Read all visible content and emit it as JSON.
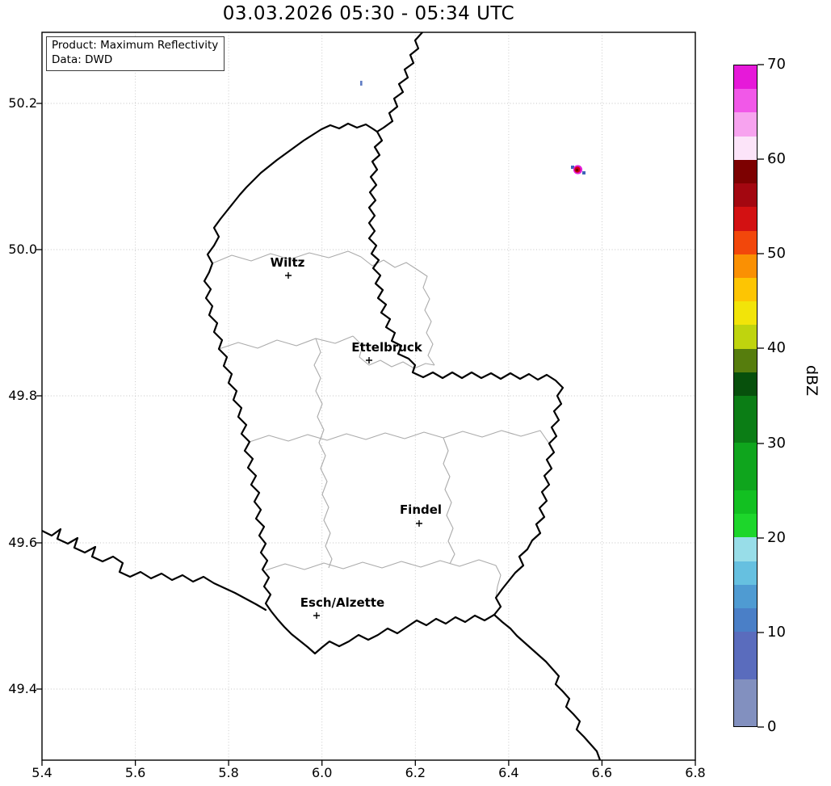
{
  "title": "03.03.2026 05:30 - 05:34 UTC",
  "info_box": {
    "product": "Product: Maximum Reflectivity",
    "data_source": "Data: DWD"
  },
  "axes": {
    "x_ticks": [
      "5.4",
      "5.6",
      "5.8",
      "6.0",
      "6.2",
      "6.4",
      "6.6",
      "6.8"
    ],
    "y_ticks": [
      "50.2",
      "50.0",
      "49.8",
      "49.6",
      "49.4"
    ]
  },
  "cities": [
    {
      "name": "Wiltz",
      "lon": 5.93,
      "lat": 49.97
    },
    {
      "name": "Ettelbruck",
      "lon": 6.1,
      "lat": 49.85
    },
    {
      "name": "Findel",
      "lon": 6.21,
      "lat": 49.63
    },
    {
      "name": "Esch/Alzette",
      "lon": 5.99,
      "lat": 49.5
    }
  ],
  "colorbar": {
    "label": "dBZ",
    "tick_labels": [
      "70",
      "60",
      "50",
      "40",
      "30",
      "20",
      "10",
      "0"
    ],
    "bands": [
      {
        "min": 67.5,
        "max": 70,
        "color": "#e619d9"
      },
      {
        "min": 65,
        "max": 67.5,
        "color": "#f158e8"
      },
      {
        "min": 62.5,
        "max": 65,
        "color": "#f7a3ef"
      },
      {
        "min": 60,
        "max": 62.5,
        "color": "#fce4f9"
      },
      {
        "min": 57.5,
        "max": 60,
        "color": "#7d0101"
      },
      {
        "min": 55,
        "max": 57.5,
        "color": "#a30710"
      },
      {
        "min": 52.5,
        "max": 55,
        "color": "#d31112"
      },
      {
        "min": 50,
        "max": 52.5,
        "color": "#f2470b"
      },
      {
        "min": 47.5,
        "max": 50,
        "color": "#fa9003"
      },
      {
        "min": 45,
        "max": 47.5,
        "color": "#fdc503"
      },
      {
        "min": 42.5,
        "max": 45,
        "color": "#f2e409"
      },
      {
        "min": 40,
        "max": 42.5,
        "color": "#bfd40e"
      },
      {
        "min": 37.5,
        "max": 40,
        "color": "#567d0d"
      },
      {
        "min": 35,
        "max": 37.5,
        "color": "#07500c"
      },
      {
        "min": 30,
        "max": 35,
        "color": "#0b7d15"
      },
      {
        "min": 25,
        "max": 30,
        "color": "#0fa51d"
      },
      {
        "min": 22.5,
        "max": 25,
        "color": "#12c021"
      },
      {
        "min": 20,
        "max": 22.5,
        "color": "#1dd62b"
      },
      {
        "min": 17.5,
        "max": 20,
        "color": "#98dde8"
      },
      {
        "min": 15,
        "max": 17.5,
        "color": "#66c0e0"
      },
      {
        "min": 12.5,
        "max": 15,
        "color": "#4f9bd2"
      },
      {
        "min": 10,
        "max": 12.5,
        "color": "#4a7fc7"
      },
      {
        "min": 5,
        "max": 10,
        "color": "#5a6cbd"
      },
      {
        "min": 0,
        "max": 5,
        "color": "#8290bf"
      }
    ]
  },
  "radar_echoes": [
    {
      "lon": 6.55,
      "lat": 50.11,
      "appearance": "small strong cell: red/dark-red core with magenta ring and isolated blue pixels"
    },
    {
      "lon": 6.08,
      "lat": 50.23,
      "appearance": "tiny weak blue echo"
    }
  ],
  "map": {
    "country_border_color": "#000000",
    "district_border_color": "#ababab",
    "grid_color": "#c4c4c4"
  }
}
